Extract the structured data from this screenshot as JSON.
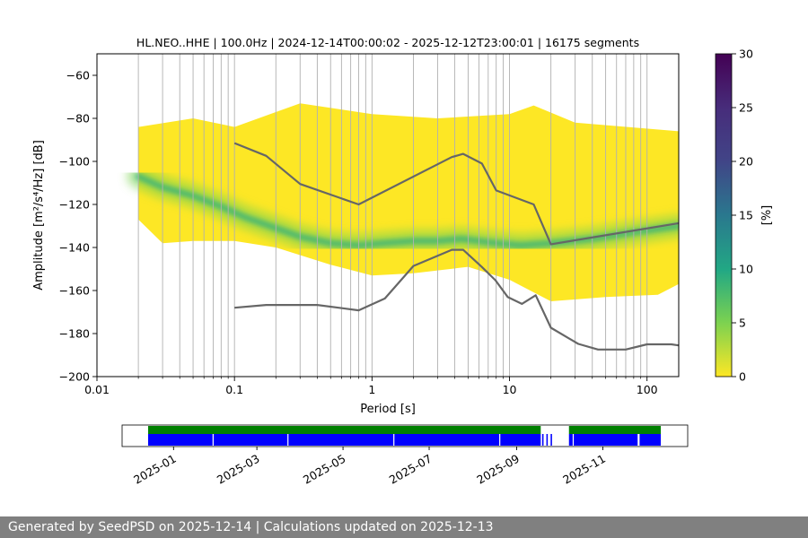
{
  "chart_data": [
    {
      "type": "heatmap",
      "title": "HL.NEO..HHE | 100.0Hz | 2024-12-14T00:00:02 - 2025-12-12T23:00:01 | 16175 segments",
      "xlabel": "Period [s]",
      "ylabel": "Amplitude [m²/s⁴/Hz] [dB]",
      "xscale": "log",
      "xlim": [
        0.01,
        170
      ],
      "ylim": [
        -200,
        -50
      ],
      "xticks": [
        "0.01",
        "0.1",
        "1",
        "10",
        "100"
      ],
      "yticks": [
        "−200",
        "−180",
        "−160",
        "−140",
        "−120",
        "−100",
        "−80",
        "−60"
      ],
      "grid": "vertical",
      "colorbar": {
        "label": "[%]",
        "range": [
          0,
          30
        ],
        "ticks": [
          "0",
          "5",
          "10",
          "15",
          "20",
          "25",
          "30"
        ],
        "colormap": "viridis_r"
      },
      "ppsd": {
        "mode": {
          "x": [
            0.02,
            0.03,
            0.05,
            0.08,
            0.12,
            0.2,
            0.3,
            0.5,
            0.8,
            1.2,
            2,
            3,
            4.5,
            6,
            8,
            12,
            20,
            40,
            80,
            170
          ],
          "y": [
            -107,
            -112,
            -116,
            -121,
            -126,
            -131,
            -135,
            -138,
            -139,
            -138,
            -137,
            -137,
            -136,
            -137,
            -138,
            -139,
            -138,
            -136,
            -133,
            -130
          ]
        },
        "upper_edge": {
          "x": [
            0.02,
            0.05,
            0.1,
            0.3,
            1,
            3,
            10,
            15,
            30,
            170
          ],
          "y": [
            -84,
            -80,
            -84,
            -73,
            -78,
            -80,
            -78,
            -74,
            -82,
            -86
          ]
        },
        "lower_edge": {
          "x": [
            0.02,
            0.03,
            0.05,
            0.1,
            0.2,
            0.5,
            1,
            2,
            5,
            10,
            20,
            50,
            120,
            170
          ],
          "y": [
            -127,
            -138,
            -137,
            -137,
            -140,
            -148,
            -153,
            -152,
            -149,
            -155,
            -165,
            -163,
            -162,
            -157
          ]
        }
      },
      "series": [
        {
          "x": [
            0.1,
            0.17,
            0.3,
            0.8,
            3.8,
            4.6,
            6.3,
            8,
            15,
            20,
            170
          ],
          "y": [
            -91.5,
            -97.4,
            -110.5,
            -120,
            -98,
            -96.5,
            -101,
            -113.5,
            -120,
            -138.5,
            -128.7
          ]
        },
        {
          "x": [
            0.1,
            0.17,
            0.4,
            0.8,
            1.24,
            2.0,
            3.8,
            4.6,
            6.3,
            7.9,
            9.7,
            12.3,
            15.5,
            20,
            31.6,
            44,
            70,
            100,
            150,
            170
          ],
          "y": [
            -168,
            -166.7,
            -166.7,
            -169.2,
            -163.7,
            -148.6,
            -141.1,
            -141.1,
            -149.1,
            -155.2,
            -163,
            -166.2,
            -162.2,
            -177.3,
            -184.8,
            -187.4,
            -187.4,
            -185,
            -185,
            -185.5
          ]
        }
      ],
      "colors": {
        "curves": "#666666",
        "grid": "#b0b0b0",
        "mode": "#29AF7F",
        "high_density": "#7AD151",
        "low_density": "#FDE725"
      }
    },
    {
      "type": "timeline",
      "x_range": [
        "2024-12-14",
        "2025-12-12"
      ],
      "xticks": [
        "2025-01",
        "2025-03",
        "2025-05",
        "2025-07",
        "2025-09",
        "2025-11"
      ],
      "xtick_dates": [
        "2025-01-01",
        "2025-03-01",
        "2025-05-01",
        "2025-07-01",
        "2025-09-01",
        "2025-11-01"
      ],
      "coverage_data": [
        [
          "2024-12-14",
          "2025-09-18"
        ],
        [
          "2025-09-19",
          "2025-09-20"
        ],
        [
          "2025-09-22",
          "2025-09-23"
        ],
        [
          "2025-09-25",
          "2025-09-26"
        ],
        [
          "2025-10-08",
          "2025-11-26"
        ],
        [
          "2025-11-27",
          "2025-12-12"
        ]
      ],
      "coverage_used": [
        [
          "2024-12-14",
          "2025-09-18"
        ],
        [
          "2025-10-08",
          "2025-12-12"
        ]
      ],
      "gaps": [
        "2025-01-29",
        "2025-03-23",
        "2025-06-06",
        "2025-08-20",
        "2025-10-11",
        "2025-11-26"
      ],
      "colors": {
        "data": "#0000ff",
        "used": "#008000"
      }
    }
  ],
  "footer": {
    "text": "Generated by SeedPSD on 2025-12-14 | Calculations updated on 2025-12-13"
  }
}
